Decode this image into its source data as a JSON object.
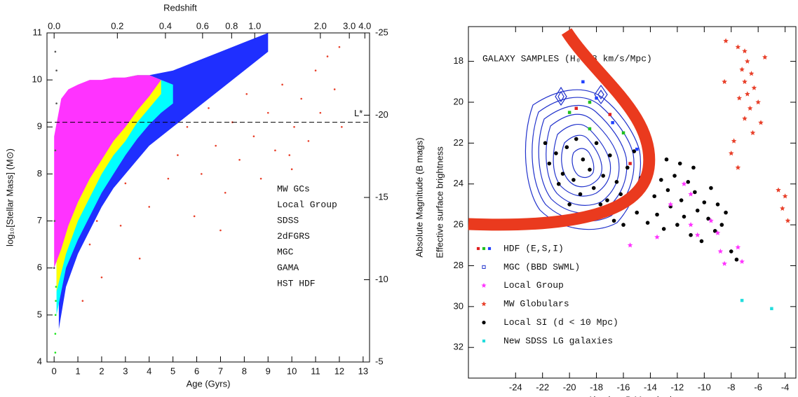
{
  "chart_data": [
    {
      "type": "scatter",
      "x_label": "Age (Gyrs)",
      "y_label": "log₁₀[Stellar Mass] (M⊙)",
      "y2_label": "Absolute Magnitude (B mags)",
      "x2_label": "Redshift",
      "xlim": [
        -0.3,
        13.27
      ],
      "xticks": [
        0,
        1,
        2,
        3,
        4,
        5,
        6,
        7,
        8,
        9,
        10,
        11,
        12,
        13
      ],
      "ylim": [
        4,
        11
      ],
      "yticks": [
        4,
        5,
        6,
        7,
        8,
        9,
        10,
        11
      ],
      "y2lim": [
        -5,
        -25
      ],
      "y2ticks": [
        -25,
        -20,
        -15,
        -10,
        -5
      ],
      "x2ticks": [
        {
          "value": 0,
          "label": "0.0"
        },
        {
          "value": 0.2,
          "label": "0.2"
        },
        {
          "value": 0.4,
          "label": "0.4"
        },
        {
          "value": 0.6,
          "label": "0.6"
        },
        {
          "value": 0.8,
          "label": "0.8"
        },
        {
          "value": 1,
          "label": "1.0"
        },
        {
          "value": 2,
          "label": "2.0"
        },
        {
          "value": 3,
          "label": "3.0"
        },
        {
          "value": 4,
          "label": "4.0"
        }
      ],
      "reference_line": {
        "value": 9.1,
        "label": "L*"
      },
      "legend": "lower right",
      "series": [
        {
          "name": "MW GCs",
          "color": "#19e619",
          "x": [
            0.05,
            0.05,
            0.06,
            0.07,
            0.08
          ],
          "values": [
            4.2,
            4.6,
            5.0,
            5.3,
            5.6
          ]
        },
        {
          "name": "Local Group",
          "color": "#555555",
          "x": [
            0,
            0.02,
            0.05,
            0.1,
            0.1,
            0.05
          ],
          "values": [
            6,
            7,
            8.5,
            9.5,
            10.2,
            10.6
          ]
        },
        {
          "name": "SDSS",
          "color": "#ff33ff",
          "x": [
            0,
            0.3,
            0.6,
            1,
            1.5,
            2,
            2.5,
            3,
            3.5,
            4,
            4.5
          ],
          "values": [
            8.8,
            9.6,
            9.8,
            9.9,
            10.0,
            10.0,
            10.05,
            10.05,
            10.1,
            10.1,
            10.0
          ],
          "lower": [
            6.0,
            6.4,
            6.9,
            7.4,
            7.9,
            8.3,
            8.7,
            9.0,
            9.35,
            9.65,
            10.0
          ]
        },
        {
          "name": "2dFGRS",
          "color": "#ffff00",
          "x": [
            0.1,
            0.5,
            1,
            1.5,
            2,
            2.5,
            3,
            3.5,
            4,
            4.5
          ],
          "values": [
            8,
            9,
            9.6,
            9.8,
            9.95,
            10,
            10.05,
            10.1,
            10.1,
            10.0
          ],
          "lower": [
            5.5,
            6.3,
            7,
            7.5,
            8,
            8.4,
            8.7,
            9.1,
            9.4,
            9.7
          ]
        },
        {
          "name": "MGC",
          "color": "#00ffff",
          "x": [
            0.1,
            0.5,
            1,
            1.5,
            2,
            2.5,
            3,
            3.5,
            4,
            4.5,
            5
          ],
          "values": [
            8,
            9,
            9.6,
            9.8,
            9.95,
            10,
            10.05,
            10.1,
            10.1,
            10.0,
            9.9
          ],
          "lower": [
            5,
            6,
            6.6,
            7.1,
            7.6,
            8.0,
            8.4,
            8.75,
            9.05,
            9.3,
            9.5
          ]
        },
        {
          "name": "GAMA",
          "color": "#1f2fff",
          "x": [
            0.2,
            0.5,
            1,
            1.5,
            2,
            2.5,
            3,
            3.5,
            4,
            5,
            6,
            7,
            8,
            9
          ],
          "values": [
            7,
            9,
            9.6,
            9.8,
            9.95,
            10,
            10.05,
            10.1,
            10.1,
            10.2,
            10.4,
            10.6,
            10.8,
            11
          ],
          "lower": [
            4.7,
            5.6,
            6.3,
            6.8,
            7.3,
            7.7,
            8.0,
            8.3,
            8.6,
            9.0,
            9.4,
            9.8,
            10.2,
            10.6
          ]
        },
        {
          "name": "HST HDF",
          "color": "#e8402a",
          "x": [
            1.2,
            1.5,
            1.8,
            2.0,
            2.2,
            2.5,
            2.8,
            3.0,
            3.3,
            3.6,
            4.0,
            4.3,
            4.8,
            5.2,
            5.6,
            5.9,
            6.2,
            6.5,
            6.8,
            7.2,
            7.5,
            7.8,
            8.1,
            8.4,
            8.7,
            9.0,
            9.3,
            9.6,
            9.9,
            10.0,
            10.1,
            10.4,
            10.7,
            11.0,
            11.2,
            11.5,
            11.8,
            12.0,
            12.1,
            7.0
          ],
          "values": [
            5.3,
            6.5,
            7.0,
            5.8,
            7.5,
            8.2,
            6.9,
            7.8,
            8.5,
            6.2,
            7.3,
            8.8,
            7.9,
            8.4,
            9.0,
            7.1,
            8.0,
            9.4,
            8.6,
            7.6,
            9.1,
            8.3,
            9.7,
            8.8,
            7.9,
            9.3,
            8.5,
            9.9,
            8.4,
            8.1,
            9.0,
            9.6,
            8.7,
            10.2,
            9.3,
            10.5,
            9.8,
            10.7,
            9.0,
            6.8
          ]
        }
      ]
    },
    {
      "type": "scatter",
      "x_label": "Absolute B Magnitude",
      "y_label": "Effective surface brightness",
      "annotation": "GALAXY SAMPLES (H₀=68 km/s/Mpc)",
      "xlim": [
        -27.5,
        -3.2
      ],
      "xticks": [
        -24,
        -22,
        -20,
        -18,
        -16,
        -14,
        -12,
        -10,
        -8,
        -6,
        -4
      ],
      "ylim": [
        33.5,
        16.3
      ],
      "yticks": [
        18,
        20,
        22,
        24,
        26,
        28,
        30,
        32
      ],
      "legend": "lower left",
      "legend_markers": true,
      "series": [
        {
          "name": "HDF (E,S,I)",
          "colors": [
            "#e02020",
            "#20c020",
            "#2040ff"
          ],
          "marker": "square",
          "x": [
            -19.5,
            -18.5,
            -18,
            -17,
            -16,
            -15,
            -14.5,
            -18.5,
            -16.8,
            -15.5,
            -20,
            -19
          ],
          "values": [
            20.3,
            20.0,
            19.8,
            20.6,
            21.5,
            22.3,
            23.5,
            21.3,
            21.0,
            23.0,
            20.5,
            19.0
          ]
        },
        {
          "name": "MGC (BBD SWML)",
          "color": "#2233cc",
          "marker": "square-open"
        },
        {
          "name": "Local Group",
          "color": "#ff33ff",
          "marker": "star",
          "x": [
            -11.5,
            -11,
            -10.5,
            -9.5,
            -9,
            -8.8,
            -8.5,
            -7.5,
            -7.2,
            -13.5,
            -15.5,
            -12.5,
            -11
          ],
          "values": [
            24.0,
            26.0,
            26.5,
            25.8,
            26.4,
            27.3,
            27.9,
            27.1,
            27.8,
            26.6,
            27.0,
            25.0,
            24.5
          ]
        },
        {
          "name": "MW Globulars",
          "color": "#e8402a",
          "marker": "star",
          "x": [
            -7.5,
            -7.0,
            -6.8,
            -7.2,
            -6.5,
            -7.0,
            -6.3,
            -6.8,
            -7.4,
            -6.0,
            -6.6,
            -7.0,
            -5.8,
            -6.4,
            -7.8,
            -5.5,
            -8.4,
            -8.0,
            -7.5,
            -4.5,
            -4.0,
            -4.2,
            -3.8,
            -8.5
          ],
          "values": [
            17.3,
            17.5,
            18.0,
            18.4,
            18.6,
            19.0,
            19.3,
            19.6,
            19.8,
            20.0,
            20.3,
            20.8,
            21.0,
            21.5,
            21.9,
            17.8,
            17.0,
            22.5,
            23.2,
            24.3,
            24.6,
            25.2,
            25.8,
            19.0
          ]
        },
        {
          "name": "Local SI (d < 10 Mpc)",
          "color": "#000000",
          "marker": "circle",
          "x": [
            -21.8,
            -21.5,
            -21.0,
            -20.8,
            -20.5,
            -20.2,
            -20.0,
            -19.7,
            -19.5,
            -19.2,
            -19.0,
            -18.7,
            -18.5,
            -18.2,
            -18.0,
            -17.7,
            -17.5,
            -17.2,
            -17.0,
            -16.7,
            -16.5,
            -16.2,
            -16.0,
            -15.7,
            -15.5,
            -15.2,
            -15.0,
            -14.7,
            -14.5,
            -14.2,
            -14.0,
            -13.7,
            -13.5,
            -13.2,
            -13.0,
            -12.7,
            -12.5,
            -12.2,
            -12.0,
            -11.7,
            -11.5,
            -11.2,
            -11.0,
            -10.7,
            -10.5,
            -10.2,
            -10.0,
            -9.7,
            -9.5,
            -9.2,
            -9.0,
            -8.7,
            -8.4,
            -8.0,
            -7.6,
            -12.8,
            -11.8,
            -10.8
          ],
          "values": [
            22.0,
            23.0,
            22.5,
            24.0,
            23.5,
            22.2,
            25.0,
            23.8,
            21.8,
            24.5,
            22.8,
            25.5,
            23.3,
            24.2,
            22.0,
            25.0,
            23.6,
            24.8,
            22.6,
            25.8,
            23.9,
            24.5,
            26.0,
            23.2,
            24.9,
            22.4,
            25.4,
            23.7,
            24.3,
            25.9,
            23.0,
            24.6,
            25.5,
            23.8,
            26.2,
            24.3,
            25.1,
            23.6,
            26.0,
            24.8,
            25.6,
            23.9,
            26.5,
            24.4,
            25.3,
            26.8,
            24.9,
            25.7,
            24.2,
            26.3,
            25.0,
            26.0,
            25.4,
            27.3,
            27.7,
            22.8,
            23.0,
            23.2
          ]
        },
        {
          "name": "New SDSS LG galaxies",
          "color": "#22dddd",
          "marker": "square",
          "x": [
            -7.2,
            -5
          ],
          "values": [
            29.7,
            30.1
          ]
        }
      ]
    }
  ]
}
